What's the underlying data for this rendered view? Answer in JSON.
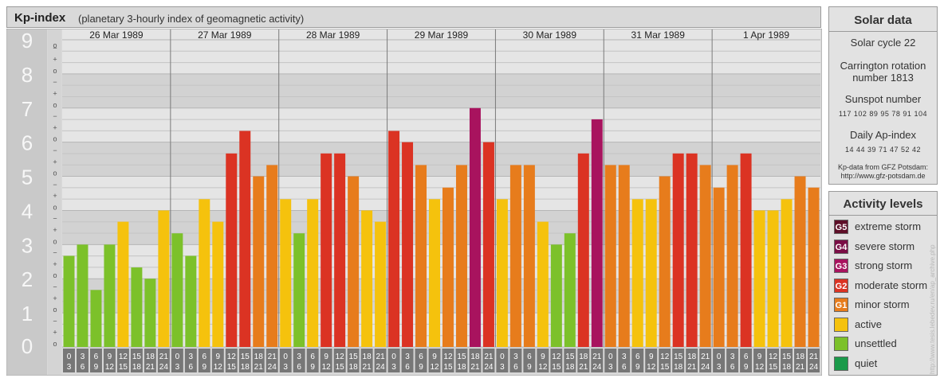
{
  "header": {
    "title": "Kp-index",
    "subtitle": "(planetary 3-hourly index of geomagnetic activity)"
  },
  "solar": {
    "heading": "Solar data",
    "cycle": "Solar cycle 22",
    "carrington_line1": "Carrington rotation",
    "carrington_line2": "number 1813",
    "sunspot_heading": "Sunspot number",
    "sunspot_values": "117 102 89 95 78 91 104",
    "ap_heading": "Daily Ap-index",
    "ap_values": "14 44 39 71 47 52 42",
    "credit_line1": "Kp-data from GFZ Potsdam:",
    "credit_line2": "http://www.gfz-potsdam.de"
  },
  "legend": {
    "heading": "Activity levels",
    "items": [
      {
        "badge": "G5",
        "label": "extreme storm",
        "color": "#5e0f28"
      },
      {
        "badge": "G4",
        "label": "severe storm",
        "color": "#7a0d45"
      },
      {
        "badge": "G3",
        "label": "strong storm",
        "color": "#a8135e"
      },
      {
        "badge": "G2",
        "label": "moderate storm",
        "color": "#db3323"
      },
      {
        "badge": "G1",
        "label": "minor storm",
        "color": "#e77c1c"
      },
      {
        "badge": "",
        "label": "active",
        "color": "#f5c20d"
      },
      {
        "badge": "",
        "label": "unsettled",
        "color": "#7cc12a"
      },
      {
        "badge": "",
        "label": "quiet",
        "color": "#1a9a4a"
      }
    ]
  },
  "watermark": "http://www.tesis.lebedev.ru/en/ap_archive.php",
  "chart_data": {
    "type": "bar",
    "ylim": [
      0,
      9
    ],
    "y_major_ticks": [
      "0",
      "1",
      "2",
      "3",
      "4",
      "5",
      "6",
      "7",
      "8",
      "9"
    ],
    "y_minor_marks": [
      "o",
      "+",
      "−"
    ],
    "days": [
      "26 Mar 1989",
      "27 Mar 1989",
      "28 Mar 1989",
      "29 Mar 1989",
      "30 Mar 1989",
      "31 Mar 1989",
      "1 Apr 1989"
    ],
    "interval_top": [
      "0",
      "3",
      "6",
      "9",
      "12",
      "15",
      "18",
      "21"
    ],
    "interval_bottom": [
      "3",
      "6",
      "9",
      "12",
      "15",
      "18",
      "21",
      "24"
    ],
    "values": [
      [
        2.67,
        3.0,
        1.67,
        3.0,
        3.67,
        2.33,
        2.0,
        4.0
      ],
      [
        3.33,
        2.67,
        4.33,
        3.67,
        5.67,
        6.33,
        5.0,
        5.33
      ],
      [
        4.33,
        3.33,
        4.33,
        5.67,
        5.67,
        5.0,
        4.0,
        3.67
      ],
      [
        6.33,
        6.0,
        5.33,
        4.33,
        4.67,
        5.33,
        7.0,
        6.0
      ],
      [
        4.33,
        5.33,
        5.33,
        3.67,
        3.0,
        3.33,
        5.67,
        6.67
      ],
      [
        5.33,
        5.33,
        4.33,
        4.33,
        5.0,
        5.67,
        5.67,
        5.33
      ],
      [
        4.67,
        5.33,
        5.67,
        4.0,
        4.0,
        4.33,
        5.0,
        4.67
      ]
    ],
    "level_colors": {
      "quiet": "#1a9a4a",
      "unsettled": "#7cc12a",
      "active": "#f5c20d",
      "minor": "#e77c1c",
      "moderate": "#db3323",
      "strong": "#a8135e",
      "severe": "#7a0d45",
      "extreme": "#5e0f28"
    }
  }
}
